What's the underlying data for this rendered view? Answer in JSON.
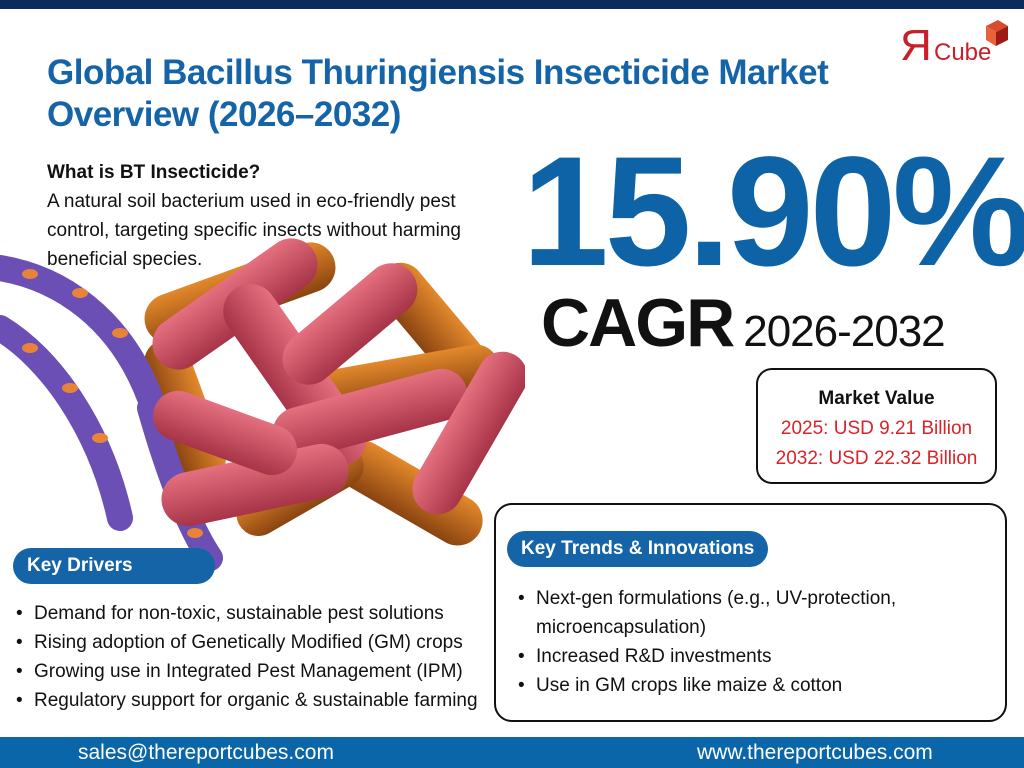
{
  "title": "Global Bacillus Thuringiensis Insecticide Market Overview (2026–2032)",
  "logo": {
    "text_r": "Я",
    "text": "Cube"
  },
  "intro": {
    "heading": "What is BT Insecticide?",
    "body": "A natural soil bacterium used in eco-friendly pest control, targeting specific insects without harming beneficial species."
  },
  "cagr": {
    "value": "15.90%",
    "label": "CAGR",
    "period": "2026-2032"
  },
  "market_value": {
    "heading": "Market Value",
    "items": [
      "2025: USD 9.21 Billion",
      "2032: USD 22.32 Billion"
    ]
  },
  "key_drivers": {
    "label": "Key Drivers",
    "items": [
      "Demand for non-toxic, sustainable pest solutions",
      "Rising adoption of Genetically Modified (GM) crops",
      "Growing use in Integrated Pest Management (IPM)",
      "Regulatory support for organic & sustainable farming"
    ]
  },
  "key_trends": {
    "label": "Key Trends & Innovations",
    "items": [
      "Next-gen formulations (e.g., UV-protection, microencapsulation)",
      "Increased R&D investments",
      "Use in GM crops like maize & cotton"
    ]
  },
  "footer": {
    "email": "sales@thereportcubes.com",
    "website": "www.thereportcubes.com"
  },
  "colors": {
    "brand_blue": "#1464a7",
    "navy": "#0b2b5e",
    "accent_red": "#d8232a"
  }
}
